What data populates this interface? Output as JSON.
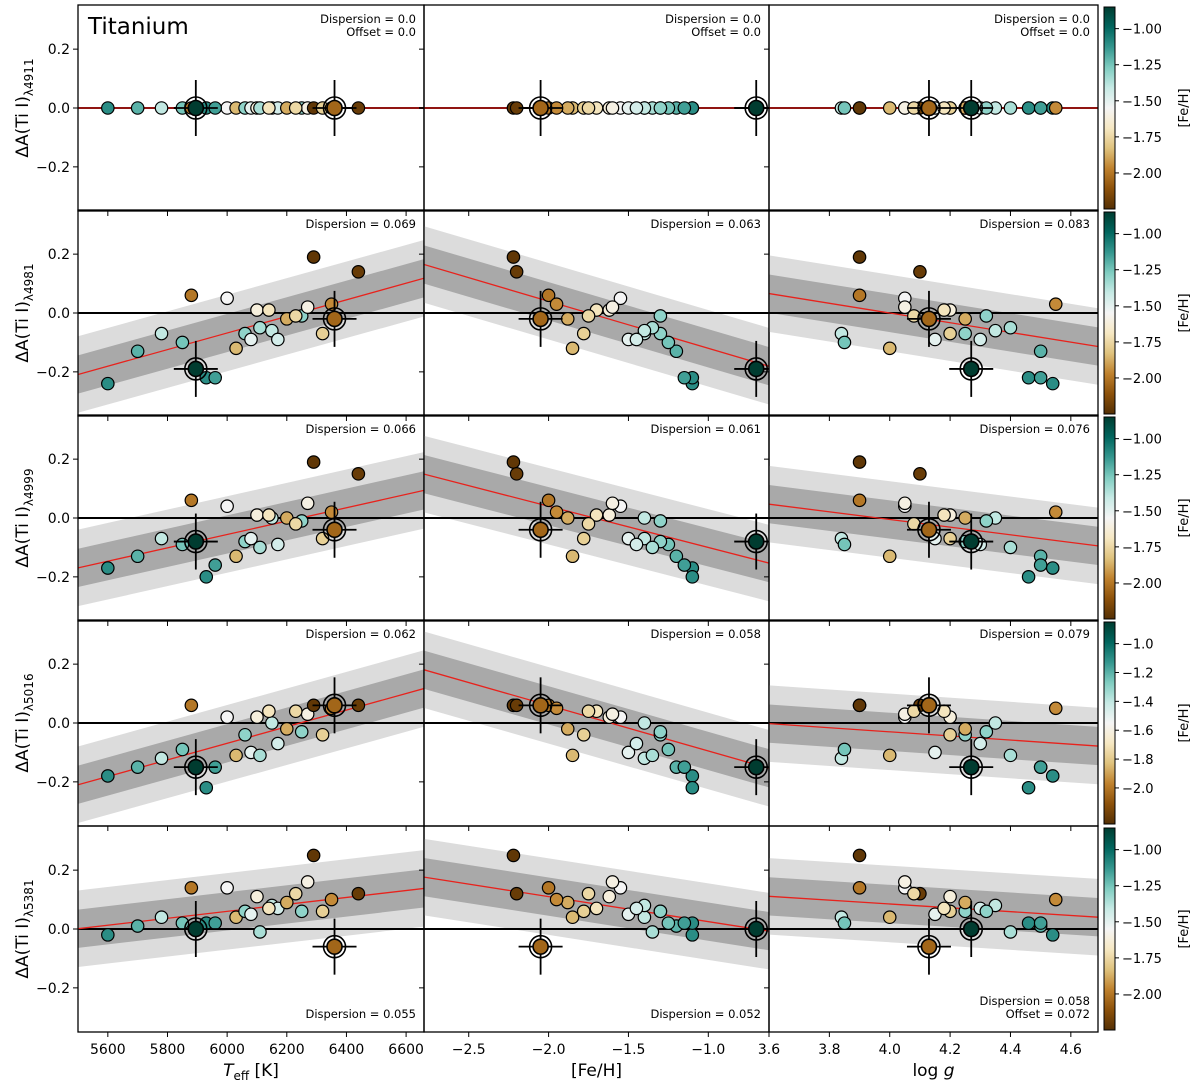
{
  "title": "Titanium",
  "chart_data": {
    "type": "scatter",
    "element": "Titanium",
    "x_axes": [
      {
        "label": "T_eff [K]",
        "label_main": "T",
        "label_sub": "eff",
        "label_rest": " [K]",
        "range": [
          5500,
          6660
        ],
        "ticks": [
          5600,
          5800,
          6000,
          6200,
          6400,
          6600
        ],
        "tick_labels": [
          "5600",
          "5800",
          "6000",
          "6200",
          "6400",
          "6600"
        ]
      },
      {
        "label": "[Fe/H]",
        "label_main": "[Fe/H]",
        "range": [
          -2.78,
          -0.62
        ],
        "ticks": [
          -2.5,
          -2.0,
          -1.5,
          -1.0
        ],
        "tick_labels": [
          "−2.5",
          "−2.0",
          "−1.5",
          "−1.0"
        ]
      },
      {
        "label": "log g",
        "label_main": "log ",
        "label_italic": "g",
        "range": [
          3.6,
          4.69
        ],
        "ticks": [
          3.6,
          3.8,
          4.0,
          4.2,
          4.4,
          4.6
        ],
        "tick_labels": [
          "3.6",
          "3.8",
          "4.0",
          "4.2",
          "4.4",
          "4.6"
        ]
      }
    ],
    "y_axis": {
      "range": [
        -0.35,
        0.35
      ],
      "ticks": [
        -0.2,
        0.0,
        0.2
      ],
      "tick_labels": [
        "−0.2",
        "0.0",
        "0.2"
      ]
    },
    "colorbar": {
      "label": "[Fe/H]",
      "colormap": [
        "#543005",
        "#8c510a",
        "#bf812d",
        "#dfc27d",
        "#f6e8c3",
        "#f5f5f5",
        "#c7eae5",
        "#80cdc1",
        "#35978f",
        "#01665e",
        "#003c30"
      ],
      "range": [
        -2.25,
        -0.85
      ],
      "ticks": [
        -1.0,
        -1.25,
        -1.5,
        -1.75,
        -2.0
      ],
      "tick_labels": [
        "−1.00",
        "−1.25",
        "−1.50",
        "−1.75",
        "−2.00"
      ],
      "alt_ticks": [
        -1.0,
        -1.2,
        -1.4,
        -1.6,
        -1.8,
        -2.0
      ],
      "alt_tick_labels": [
        "−1.0",
        "−1.2",
        "−1.4",
        "−1.6",
        "−1.8",
        "−2.0"
      ]
    },
    "stars": [
      {
        "teff": 5600,
        "feh": -1.1,
        "logg": 4.54,
        "d": [
          0.0,
          -0.24,
          -0.17,
          -0.18,
          -0.02
        ]
      },
      {
        "teff": 5700,
        "feh": -1.2,
        "logg": 4.5,
        "d": [
          0.0,
          -0.13,
          -0.13,
          -0.15,
          0.01
        ]
      },
      {
        "teff": 5780,
        "feh": -1.4,
        "logg": 3.84,
        "d": [
          0.0,
          -0.07,
          -0.07,
          -0.12,
          0.04
        ]
      },
      {
        "teff": 5850,
        "feh": -1.25,
        "logg": 3.85,
        "d": [
          0.0,
          -0.1,
          -0.09,
          -0.09,
          0.02
        ]
      },
      {
        "teff": 5880,
        "feh": -2.0,
        "logg": 3.9,
        "d": [
          0.0,
          0.06,
          0.06,
          0.06,
          0.14
        ]
      },
      {
        "teff": 5930,
        "feh": -1.1,
        "logg": 4.46,
        "d": [
          0.0,
          -0.22,
          -0.2,
          -0.22,
          0.02
        ]
      },
      {
        "teff": 6000,
        "feh": -1.55,
        "logg": 4.05,
        "d": [
          0.0,
          0.05,
          0.04,
          0.02,
          0.14
        ]
      },
      {
        "teff": 6030,
        "feh": -1.85,
        "logg": 4.0,
        "d": [
          0.0,
          -0.12,
          -0.13,
          -0.11,
          0.04
        ]
      },
      {
        "teff": 6060,
        "feh": -1.3,
        "logg": 4.25,
        "d": [
          0.0,
          -0.07,
          -0.08,
          -0.04,
          0.06
        ]
      },
      {
        "teff": 6080,
        "feh": -1.5,
        "logg": 4.15,
        "d": [
          0.0,
          -0.09,
          -0.07,
          -0.1,
          0.05
        ]
      },
      {
        "teff": 6100,
        "feh": -1.62,
        "logg": 4.2,
        "d": [
          0.0,
          0.01,
          0.01,
          0.02,
          0.11
        ]
      },
      {
        "teff": 6110,
        "feh": -1.35,
        "logg": 4.4,
        "d": [
          0.0,
          -0.05,
          -0.1,
          -0.11,
          -0.01
        ]
      },
      {
        "teff": 6150,
        "feh": -1.4,
        "logg": 4.35,
        "d": [
          0.0,
          -0.06,
          0.0,
          0.0,
          0.08
        ]
      },
      {
        "teff": 6170,
        "feh": -1.45,
        "logg": 4.3,
        "d": [
          0.0,
          -0.09,
          -0.09,
          -0.07,
          0.07
        ]
      },
      {
        "teff": 6250,
        "feh": -1.3,
        "logg": 4.32,
        "d": [
          0.0,
          -0.01,
          -0.01,
          -0.03,
          0.06
        ]
      },
      {
        "teff": 6270,
        "feh": -1.6,
        "logg": 4.05,
        "d": [
          0.0,
          0.02,
          0.05,
          0.03,
          0.16
        ]
      },
      {
        "teff": 6290,
        "feh": -2.22,
        "logg": 3.9,
        "d": [
          0.0,
          0.19,
          0.19,
          0.06,
          0.25
        ]
      },
      {
        "teff": 6320,
        "feh": -1.78,
        "logg": 4.2,
        "d": [
          0.0,
          -0.07,
          -0.07,
          -0.04,
          0.06
        ]
      },
      {
        "teff": 6440,
        "feh": -2.2,
        "logg": 4.1,
        "d": [
          0.0,
          0.14,
          0.15,
          0.06,
          0.12
        ]
      },
      {
        "teff": 6140,
        "feh": -1.7,
        "logg": 4.18,
        "d": [
          0.0,
          0.01,
          0.01,
          0.04,
          0.07
        ]
      },
      {
        "teff": 6200,
        "feh": -1.88,
        "logg": 4.25,
        "d": [
          0.0,
          -0.02,
          0.0,
          -0.02,
          0.09
        ]
      },
      {
        "teff": 6230,
        "feh": -1.75,
        "logg": 4.08,
        "d": [
          0.0,
          -0.01,
          -0.02,
          0.04,
          0.12
        ]
      },
      {
        "teff": 6350,
        "feh": -1.95,
        "logg": 4.55,
        "d": [
          0.0,
          0.03,
          0.02,
          0.05,
          0.1
        ]
      },
      {
        "teff": 5960,
        "feh": -1.15,
        "logg": 4.5,
        "d": [
          0.0,
          -0.22,
          -0.16,
          -0.15,
          0.02
        ]
      }
    ],
    "highlighted_stars": [
      {
        "teff": 5895,
        "feh": -0.7,
        "logg": 4.27,
        "d": [
          0.0,
          -0.19,
          -0.08,
          -0.15,
          0.0
        ]
      },
      {
        "teff": 6360,
        "feh": -2.05,
        "logg": 4.13,
        "d": [
          0.0,
          -0.02,
          -0.04,
          0.06,
          -0.06
        ]
      }
    ],
    "panels": [
      {
        "row": 0,
        "ylabel": "ΔA(Ti I)λ4911",
        "ylabel_main": "ΔA(Ti I)",
        "ylabel_sub": "λ4911",
        "trends": [
          {
            "slope": 0.0,
            "intercept": 0.0
          },
          {
            "slope": 0.0,
            "intercept": 0.0
          },
          {
            "slope": 0.0,
            "intercept": 0.0
          }
        ],
        "texts": [
          [
            "Dispersion = 0.0",
            "Offset = 0.0"
          ],
          [
            "Dispersion = 0.0",
            "Offset = 0.0"
          ],
          [
            "Dispersion = 0.0",
            "Offset = 0.0"
          ]
        ]
      },
      {
        "row": 1,
        "ylabel": "ΔA(Ti I)λ4981",
        "ylabel_main": "ΔA(Ti I)",
        "ylabel_sub": "λ4981",
        "trends": [
          {
            "slope": 0.000282,
            "intercept": -1.76
          },
          {
            "slope": -0.16,
            "intercept": -0.28
          },
          {
            "slope": -0.165,
            "intercept": 0.66
          }
        ],
        "texts": [
          [
            "Dispersion = 0.069"
          ],
          [
            "Dispersion = 0.063"
          ],
          [
            "Dispersion = 0.083"
          ]
        ]
      },
      {
        "row": 2,
        "ylabel": "ΔA(Ti I)λ4999",
        "ylabel_main": "ΔA(Ti I)",
        "ylabel_sub": "λ4999",
        "trends": [
          {
            "slope": 0.000227,
            "intercept": -1.418
          },
          {
            "slope": -0.14,
            "intercept": -0.24
          },
          {
            "slope": -0.13,
            "intercept": 0.515
          }
        ],
        "texts": [
          [
            "Dispersion = 0.066"
          ],
          [
            "Dispersion = 0.061"
          ],
          [
            "Dispersion = 0.076"
          ]
        ]
      },
      {
        "row": 3,
        "ylabel": "ΔA(Ti I)λ5016",
        "ylabel_main": "ΔA(Ti I)",
        "ylabel_sub": "λ5016",
        "trends": [
          {
            "slope": 0.000282,
            "intercept": -1.761
          },
          {
            "slope": -0.155,
            "intercept": -0.25
          },
          {
            "slope": -0.07,
            "intercept": 0.25
          }
        ],
        "texts": [
          [
            "Dispersion = 0.062"
          ],
          [
            "Dispersion = 0.058"
          ],
          [
            "Dispersion = 0.079"
          ]
        ]
      },
      {
        "row": 4,
        "ylabel": "ΔA(Ti I)λ5381",
        "ylabel_main": "ΔA(Ti I)",
        "ylabel_sub": "λ5381",
        "trends": [
          {
            "slope": 0.000118,
            "intercept": -0.648
          },
          {
            "slope": -0.085,
            "intercept": -0.06
          },
          {
            "slope": -0.065,
            "intercept": 0.345
          }
        ],
        "texts": [
          [
            "Dispersion = 0.055"
          ],
          [
            "Dispersion = 0.052"
          ],
          [
            "Dispersion = 0.058",
            "Offset = 0.072"
          ]
        ]
      }
    ]
  }
}
